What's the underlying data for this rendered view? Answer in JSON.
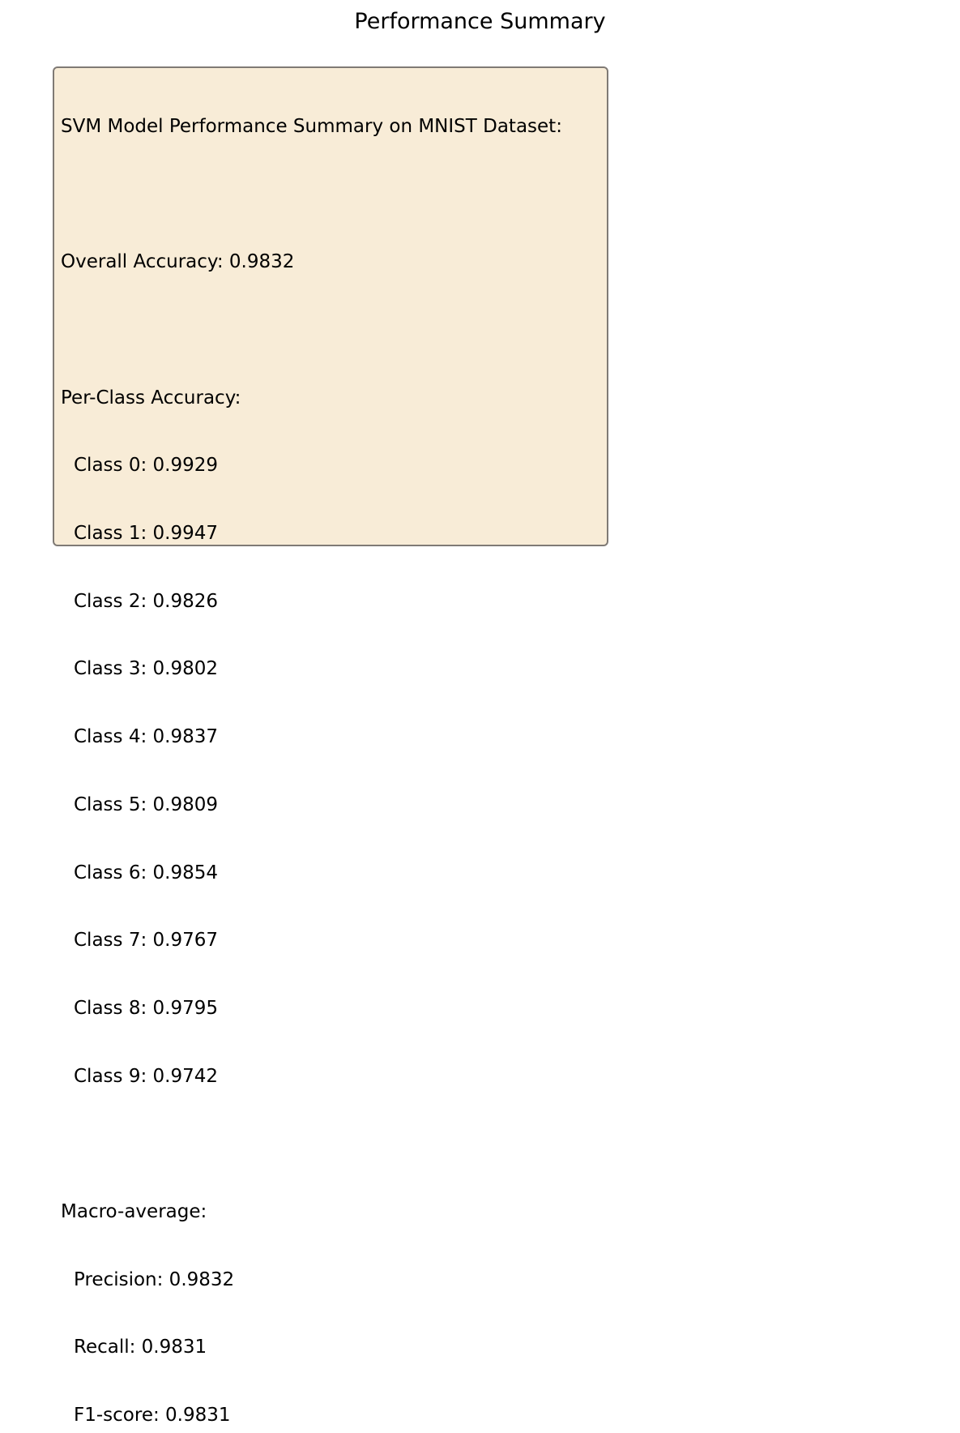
{
  "title": "Performance Summary",
  "summary": {
    "heading": "SVM Model Performance Summary on MNIST Dataset:",
    "overall": {
      "label": "Overall Accuracy: 0.9832",
      "value": 0.9832
    },
    "per_class_heading": "Per-Class Accuracy:",
    "per_class": [
      {
        "text": "Class 0: 0.9929",
        "class": 0,
        "accuracy": 0.9929
      },
      {
        "text": "Class 1: 0.9947",
        "class": 1,
        "accuracy": 0.9947
      },
      {
        "text": "Class 2: 0.9826",
        "class": 2,
        "accuracy": 0.9826
      },
      {
        "text": "Class 3: 0.9802",
        "class": 3,
        "accuracy": 0.9802
      },
      {
        "text": "Class 4: 0.9837",
        "class": 4,
        "accuracy": 0.9837
      },
      {
        "text": "Class 5: 0.9809",
        "class": 5,
        "accuracy": 0.9809
      },
      {
        "text": "Class 6: 0.9854",
        "class": 6,
        "accuracy": 0.9854
      },
      {
        "text": "Class 7: 0.9767",
        "class": 7,
        "accuracy": 0.9767
      },
      {
        "text": "Class 8: 0.9795",
        "class": 8,
        "accuracy": 0.9795
      },
      {
        "text": "Class 9: 0.9742",
        "class": 9,
        "accuracy": 0.9742
      }
    ],
    "macro_heading": "Macro-average:",
    "macro": {
      "precision": "Precision: 0.9832",
      "recall": "Recall: 0.9831",
      "f1": "F1-score: 0.9831"
    }
  },
  "colors": {
    "box_background": "#f8ecd7",
    "box_border": "#7f7a75",
    "text": "#000000"
  }
}
